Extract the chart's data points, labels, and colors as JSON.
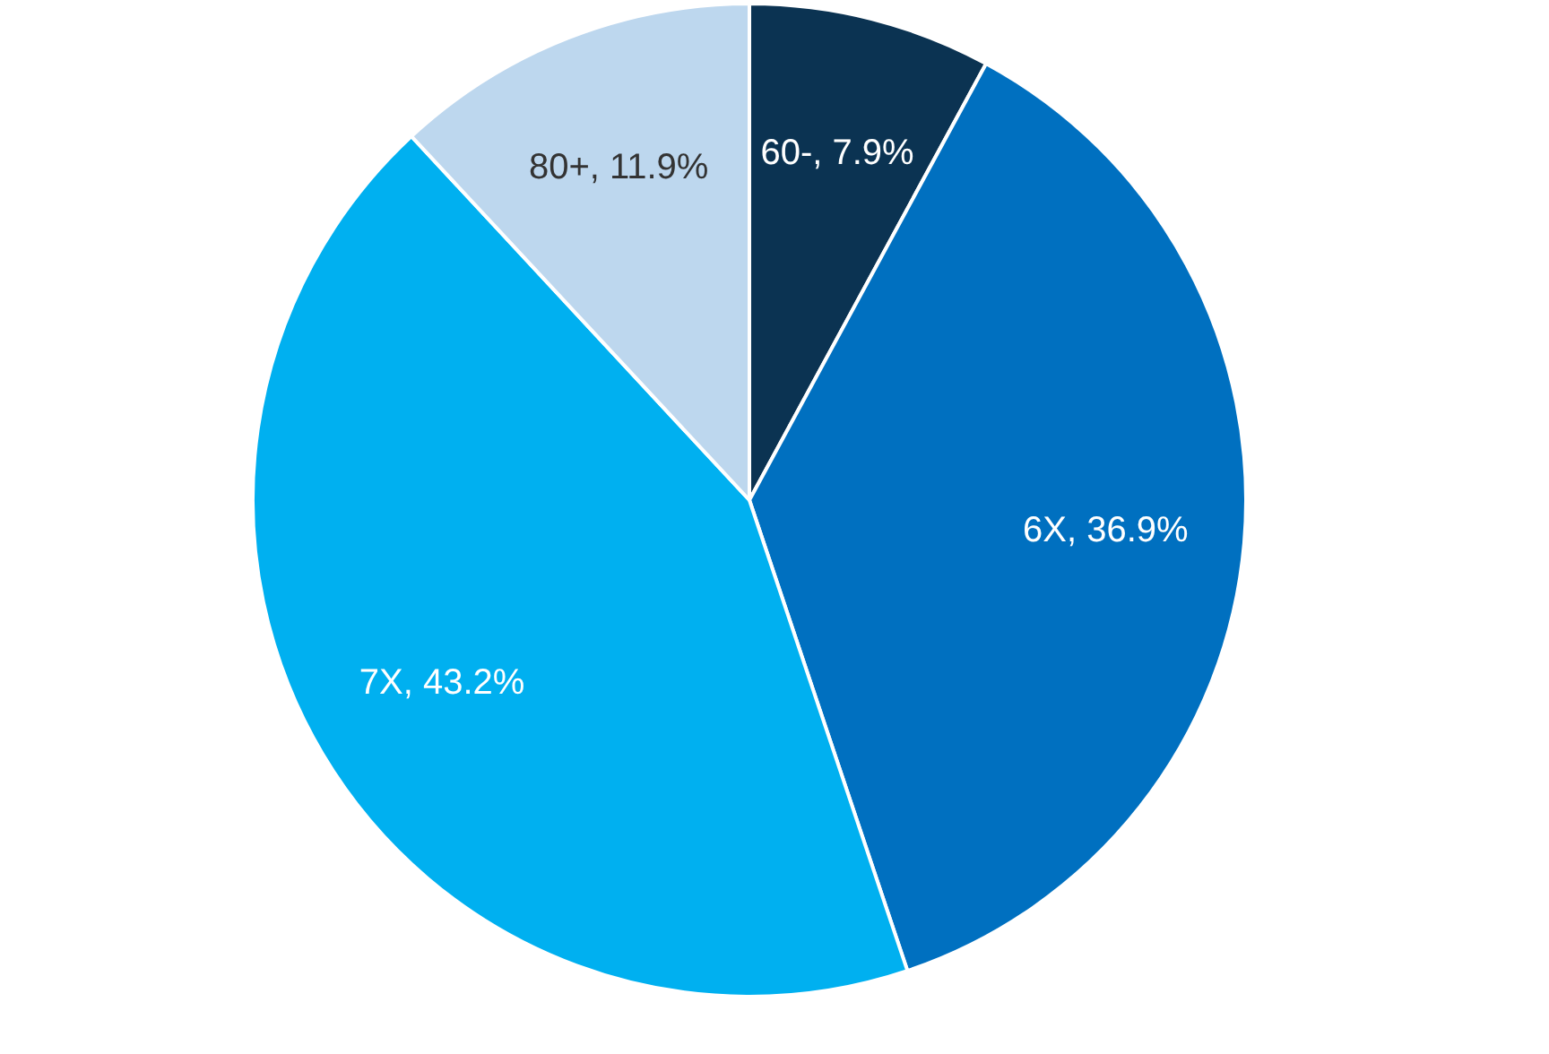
{
  "chart_data": {
    "type": "pie",
    "categories": [
      "60-",
      "6X",
      "7X",
      "80+"
    ],
    "values": [
      7.9,
      36.9,
      43.2,
      11.9
    ],
    "value_labels": [
      "7.9%",
      "36.9%",
      "43.2%",
      "11.9%"
    ],
    "colors": [
      "#0b3352",
      "#0070c0",
      "#00b0f0",
      "#bdd7ee"
    ]
  }
}
